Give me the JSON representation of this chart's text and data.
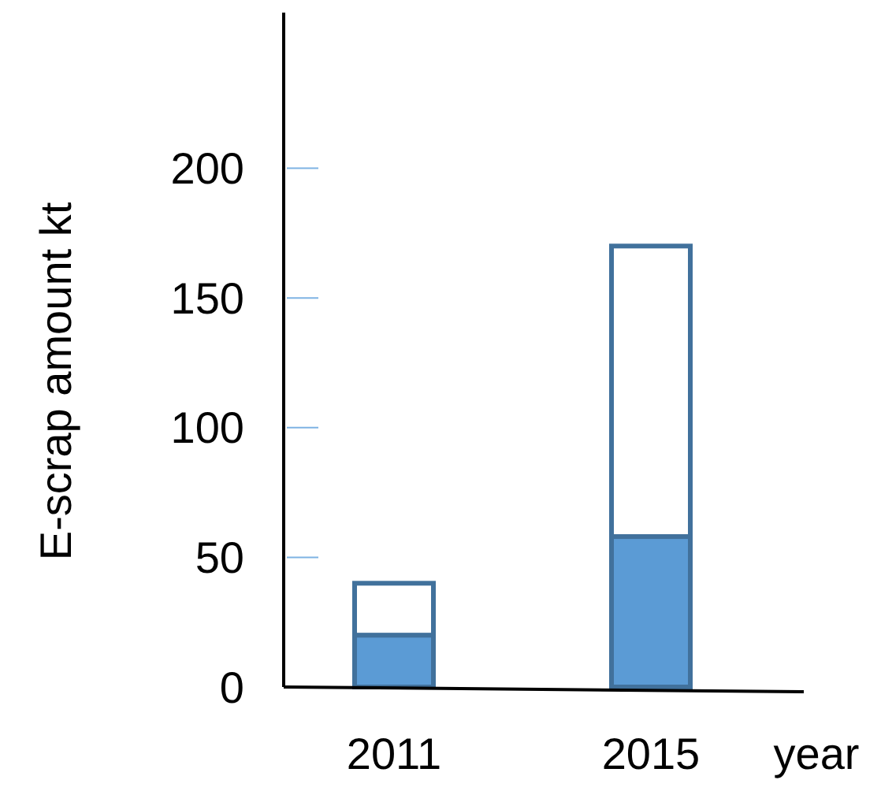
{
  "chart_data": {
    "type": "bar",
    "stacked": true,
    "categories": [
      "2011",
      "2015"
    ],
    "series": [
      {
        "color": "#5b9bd5",
        "values": [
          20,
          58
        ]
      },
      {
        "color": "#ffffff",
        "values": [
          20,
          112
        ]
      }
    ],
    "ylabel": "E-scrap amount kt",
    "xlabel": "year",
    "ylim": [
      0,
      260
    ],
    "yticks": [
      0,
      50,
      100,
      150,
      200
    ],
    "grid": false
  }
}
